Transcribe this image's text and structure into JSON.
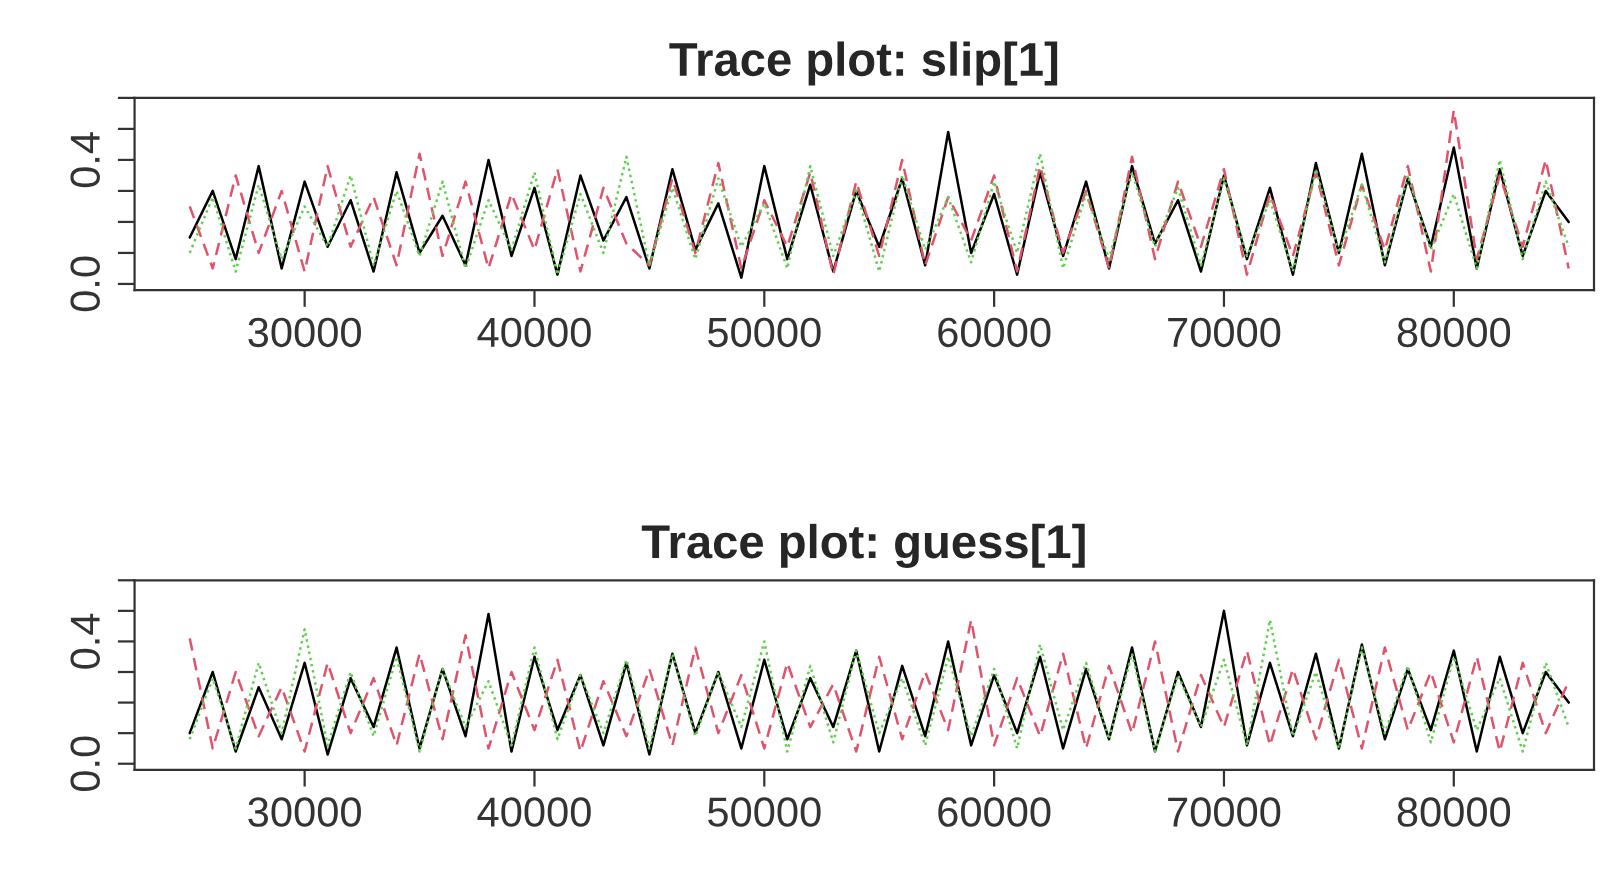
{
  "chart_data": [
    {
      "type": "line",
      "title": "Trace plot: slip[1]",
      "x": [
        25000,
        26000,
        27000,
        28000,
        29000,
        30000,
        31000,
        32000,
        33000,
        34000,
        35000,
        36000,
        37000,
        38000,
        39000,
        40000,
        41000,
        42000,
        43000,
        44000,
        45000,
        46000,
        47000,
        48000,
        49000,
        50000,
        51000,
        52000,
        53000,
        54000,
        55000,
        56000,
        57000,
        58000,
        59000,
        60000,
        61000,
        62000,
        63000,
        64000,
        65000,
        66000,
        67000,
        68000,
        69000,
        70000,
        71000,
        72000,
        73000,
        74000,
        75000,
        76000,
        77000,
        78000,
        79000,
        80000,
        81000,
        82000,
        83000,
        84000,
        85000
      ],
      "series": [
        {
          "color": "#000000",
          "line_style": "solid",
          "values": [
            0.15,
            0.3,
            0.08,
            0.38,
            0.05,
            0.33,
            0.12,
            0.27,
            0.04,
            0.36,
            0.1,
            0.22,
            0.06,
            0.4,
            0.09,
            0.31,
            0.03,
            0.35,
            0.14,
            0.28,
            0.05,
            0.37,
            0.11,
            0.26,
            0.02,
            0.38,
            0.08,
            0.32,
            0.04,
            0.3,
            0.12,
            0.34,
            0.06,
            0.49,
            0.1,
            0.29,
            0.03,
            0.36,
            0.09,
            0.33,
            0.05,
            0.38,
            0.13,
            0.27,
            0.04,
            0.35,
            0.08,
            0.31,
            0.03,
            0.39,
            0.1,
            0.42,
            0.06,
            0.34,
            0.12,
            0.44,
            0.05,
            0.37,
            0.09,
            0.3,
            0.2
          ]
        },
        {
          "color": "#df536b",
          "line_style": "dashed",
          "values": [
            0.25,
            0.05,
            0.35,
            0.1,
            0.3,
            0.04,
            0.38,
            0.12,
            0.28,
            0.06,
            0.42,
            0.09,
            0.33,
            0.05,
            0.29,
            0.11,
            0.37,
            0.04,
            0.31,
            0.13,
            0.06,
            0.34,
            0.1,
            0.39,
            0.05,
            0.27,
            0.12,
            0.36,
            0.03,
            0.33,
            0.09,
            0.4,
            0.06,
            0.28,
            0.14,
            0.35,
            0.04,
            0.38,
            0.1,
            0.3,
            0.05,
            0.41,
            0.08,
            0.33,
            0.12,
            0.37,
            0.03,
            0.29,
            0.09,
            0.36,
            0.06,
            0.32,
            0.11,
            0.38,
            0.04,
            0.56,
            0.08,
            0.35,
            0.12,
            0.4,
            0.05
          ]
        },
        {
          "color": "#61d04f",
          "line_style": "dotted",
          "values": [
            0.1,
            0.28,
            0.04,
            0.32,
            0.08,
            0.25,
            0.12,
            0.35,
            0.06,
            0.3,
            0.09,
            0.33,
            0.05,
            0.27,
            0.11,
            0.36,
            0.03,
            0.29,
            0.1,
            0.41,
            0.06,
            0.31,
            0.08,
            0.34,
            0.12,
            0.26,
            0.05,
            0.38,
            0.09,
            0.3,
            0.04,
            0.35,
            0.11,
            0.28,
            0.07,
            0.33,
            0.1,
            0.42,
            0.05,
            0.29,
            0.08,
            0.36,
            0.12,
            0.31,
            0.06,
            0.34,
            0.09,
            0.27,
            0.04,
            0.37,
            0.1,
            0.32,
            0.07,
            0.35,
            0.11,
            0.29,
            0.05,
            0.4,
            0.08,
            0.33,
            0.12
          ]
        }
      ],
      "xlim": [
        22600,
        86100
      ],
      "xticks": [
        30000,
        40000,
        50000,
        60000,
        70000,
        80000
      ],
      "ylim": [
        -0.02,
        0.6
      ],
      "yticks": [
        {
          "value": 0.0,
          "label": "0.0"
        },
        {
          "value": 0.1,
          "label": null
        },
        {
          "value": 0.2,
          "label": null
        },
        {
          "value": 0.3,
          "label": null
        },
        {
          "value": 0.4,
          "label": "0.4"
        },
        {
          "value": 0.5,
          "label": null
        },
        {
          "value": 0.6,
          "label": null
        }
      ],
      "grid": false,
      "legend": false
    },
    {
      "type": "line",
      "title": "Trace plot: guess[1]",
      "x": [
        25000,
        26000,
        27000,
        28000,
        29000,
        30000,
        31000,
        32000,
        33000,
        34000,
        35000,
        36000,
        37000,
        38000,
        39000,
        40000,
        41000,
        42000,
        43000,
        44000,
        45000,
        46000,
        47000,
        48000,
        49000,
        50000,
        51000,
        52000,
        53000,
        54000,
        55000,
        56000,
        57000,
        58000,
        59000,
        60000,
        61000,
        62000,
        63000,
        64000,
        65000,
        66000,
        67000,
        68000,
        69000,
        70000,
        71000,
        72000,
        73000,
        74000,
        75000,
        76000,
        77000,
        78000,
        79000,
        80000,
        81000,
        82000,
        83000,
        84000,
        85000
      ],
      "series": [
        {
          "color": "#000000",
          "line_style": "solid",
          "values": [
            0.1,
            0.3,
            0.04,
            0.25,
            0.08,
            0.33,
            0.03,
            0.28,
            0.12,
            0.38,
            0.05,
            0.31,
            0.09,
            0.49,
            0.04,
            0.35,
            0.11,
            0.29,
            0.06,
            0.33,
            0.03,
            0.36,
            0.1,
            0.3,
            0.05,
            0.34,
            0.08,
            0.28,
            0.12,
            0.37,
            0.04,
            0.32,
            0.09,
            0.4,
            0.06,
            0.29,
            0.1,
            0.35,
            0.05,
            0.31,
            0.08,
            0.38,
            0.04,
            0.3,
            0.12,
            0.5,
            0.06,
            0.33,
            0.09,
            0.36,
            0.05,
            0.39,
            0.08,
            0.31,
            0.11,
            0.37,
            0.04,
            0.35,
            0.1,
            0.3,
            0.2
          ]
        },
        {
          "color": "#df536b",
          "line_style": "dashed",
          "values": [
            0.41,
            0.05,
            0.3,
            0.09,
            0.25,
            0.04,
            0.33,
            0.1,
            0.28,
            0.06,
            0.36,
            0.08,
            0.42,
            0.05,
            0.3,
            0.11,
            0.34,
            0.04,
            0.27,
            0.09,
            0.31,
            0.06,
            0.38,
            0.1,
            0.29,
            0.05,
            0.33,
            0.12,
            0.26,
            0.04,
            0.35,
            0.08,
            0.3,
            0.11,
            0.47,
            0.06,
            0.28,
            0.09,
            0.36,
            0.05,
            0.32,
            0.1,
            0.4,
            0.04,
            0.29,
            0.12,
            0.37,
            0.06,
            0.31,
            0.08,
            0.34,
            0.05,
            0.38,
            0.11,
            0.3,
            0.07,
            0.35,
            0.04,
            0.33,
            0.1,
            0.27
          ]
        },
        {
          "color": "#61d04f",
          "line_style": "dotted",
          "values": [
            0.08,
            0.28,
            0.05,
            0.33,
            0.1,
            0.44,
            0.06,
            0.3,
            0.09,
            0.35,
            0.04,
            0.31,
            0.12,
            0.27,
            0.06,
            0.38,
            0.08,
            0.29,
            0.1,
            0.34,
            0.05,
            0.36,
            0.09,
            0.3,
            0.12,
            0.4,
            0.04,
            0.32,
            0.07,
            0.37,
            0.1,
            0.28,
            0.06,
            0.35,
            0.09,
            0.31,
            0.05,
            0.39,
            0.11,
            0.33,
            0.08,
            0.36,
            0.04,
            0.29,
            0.12,
            0.34,
            0.06,
            0.47,
            0.09,
            0.3,
            0.05,
            0.38,
            0.1,
            0.32,
            0.07,
            0.35,
            0.11,
            0.28,
            0.04,
            0.33,
            0.12
          ]
        }
      ],
      "xlim": [
        22600,
        86100
      ],
      "xticks": [
        30000,
        40000,
        50000,
        60000,
        70000,
        80000
      ],
      "ylim": [
        -0.02,
        0.6
      ],
      "yticks": [
        {
          "value": 0.0,
          "label": "0.0"
        },
        {
          "value": 0.1,
          "label": null
        },
        {
          "value": 0.2,
          "label": null
        },
        {
          "value": 0.3,
          "label": null
        },
        {
          "value": 0.4,
          "label": "0.4"
        },
        {
          "value": 0.5,
          "label": null
        },
        {
          "value": 0.6,
          "label": null
        }
      ],
      "grid": false,
      "legend": false
    }
  ]
}
